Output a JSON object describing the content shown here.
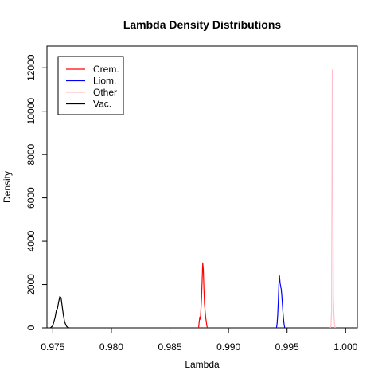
{
  "chart_data": {
    "type": "line",
    "title": "Lambda Density Distributions",
    "xlabel": "Lambda",
    "ylabel": "Density",
    "xlim": [
      0.9745,
      1.001
    ],
    "ylim": [
      0,
      13000
    ],
    "x_ticks": [
      0.975,
      0.98,
      0.985,
      0.99,
      0.995,
      1.0
    ],
    "x_tick_labels": [
      "0.975",
      "0.980",
      "0.985",
      "0.990",
      "0.995",
      "1.000"
    ],
    "y_ticks": [
      0,
      2000,
      4000,
      6000,
      8000,
      10000,
      12000
    ],
    "y_tick_labels": [
      "0",
      "2000",
      "4000",
      "6000",
      "8000",
      "10000",
      "12000"
    ],
    "grid": false,
    "legend": {
      "placement": "top-left",
      "entries": [
        {
          "label": "Crem.",
          "color": "#ff0000"
        },
        {
          "label": "Liom.",
          "color": "#0000ff"
        },
        {
          "label": "Other",
          "color": "#ffc0cb"
        },
        {
          "label": "Vac.",
          "color": "#000000"
        }
      ]
    },
    "series": [
      {
        "name": "Crem.",
        "color": "#ff0000",
        "x": [
          0.98745,
          0.9875,
          0.98755,
          0.9876,
          0.98765,
          0.9877,
          0.98775,
          0.9878,
          0.98785,
          0.9879,
          0.98795,
          0.988,
          0.98805,
          0.9881,
          0.98815,
          0.9882
        ],
        "y": [
          0,
          300,
          500,
          400,
          900,
          1400,
          2200,
          3000,
          2700,
          1800,
          1100,
          800,
          500,
          300,
          100,
          0
        ]
      },
      {
        "name": "Liom.",
        "color": "#0000ff",
        "x": [
          0.9941,
          0.99415,
          0.9942,
          0.99425,
          0.9943,
          0.99435,
          0.9944,
          0.99445,
          0.9945,
          0.99455,
          0.9946,
          0.99465,
          0.9947,
          0.99475,
          0.9948
        ],
        "y": [
          0,
          200,
          600,
          1200,
          2000,
          2400,
          2100,
          1900,
          1800,
          1500,
          1100,
          700,
          400,
          150,
          0
        ]
      },
      {
        "name": "Other",
        "color": "#ffc0cb",
        "x": [
          0.9987,
          0.99875,
          0.9988,
          0.99883,
          0.99886,
          0.99889,
          0.99892,
          0.99895,
          0.999,
          0.99905,
          0.9991
        ],
        "y": [
          0,
          100,
          800,
          6000,
          11900,
          9000,
          5400,
          1500,
          600,
          200,
          0
        ]
      },
      {
        "name": "Vac.",
        "color": "#000000",
        "x": [
          0.9748,
          0.975,
          0.9752,
          0.9753,
          0.9754,
          0.9755,
          0.9756,
          0.9757,
          0.9758,
          0.9759,
          0.976,
          0.9761,
          0.9762,
          0.9764
        ],
        "y": [
          0,
          100,
          500,
          800,
          900,
          1200,
          1450,
          1400,
          1000,
          600,
          300,
          150,
          50,
          0
        ]
      }
    ]
  }
}
